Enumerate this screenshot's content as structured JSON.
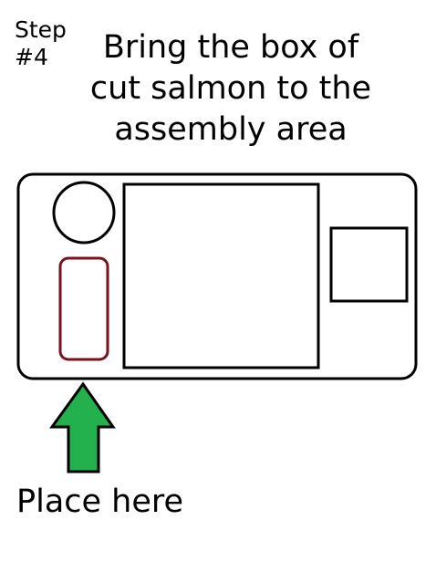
{
  "step": {
    "word": "Step",
    "number": "#4"
  },
  "instruction": {
    "lines": [
      "Bring the box of",
      "cut salmon to the",
      "assembly area"
    ]
  },
  "caption": "Place here",
  "colors": {
    "outline": "#000000",
    "target_slot": "#7a1020",
    "arrow_fill": "#22b14c",
    "background": "#ffffff"
  },
  "icons": {
    "arrow": "up-arrow-icon"
  }
}
